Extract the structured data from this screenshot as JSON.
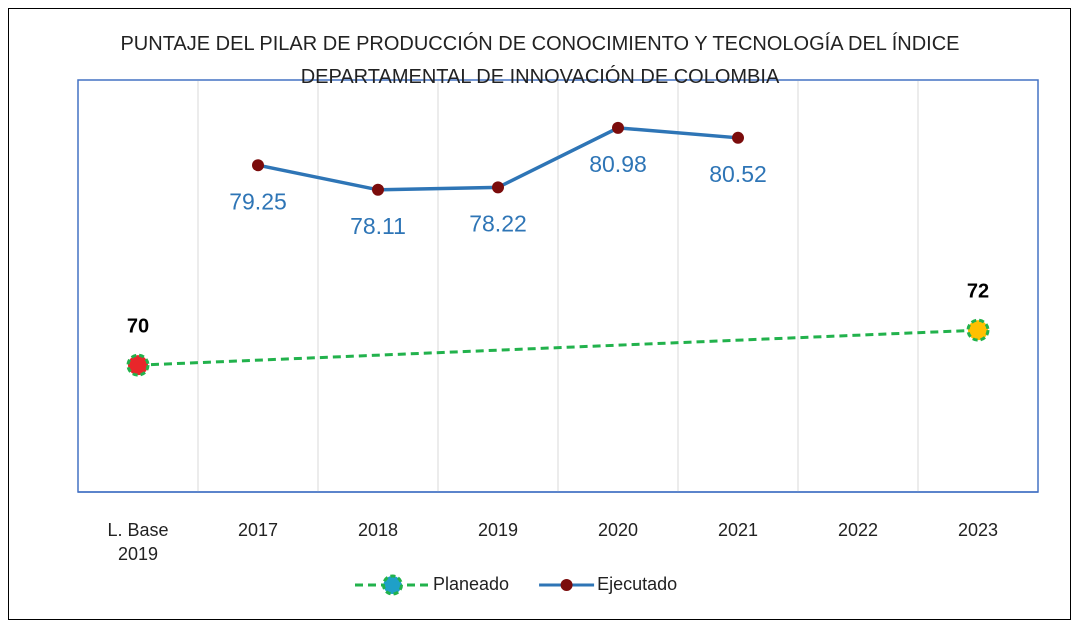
{
  "chart_data": {
    "type": "line",
    "title": "PUNTAJE DEL PILAR DE PRODUCCIÓN DE CONOCIMIENTO Y TECNOLOGÍA DEL ÍNDICE DEPARTAMENTAL DE INNOVACIÓN DE COLOMBIA",
    "categories": [
      "L. Base 2019",
      "2017",
      "2018",
      "2019",
      "2020",
      "2021",
      "2022",
      "2023"
    ],
    "series": [
      {
        "name": "Planeado",
        "color": "#22b24c",
        "dashed": true,
        "span_gaps": true,
        "marker_color": "#1fa0c8",
        "point_colors": [
          "#e8262a",
          null,
          null,
          null,
          null,
          null,
          null,
          "#ffc000"
        ],
        "values": [
          70,
          null,
          null,
          null,
          null,
          null,
          null,
          72
        ]
      },
      {
        "name": "Ejecutado",
        "color": "#2e75b6",
        "marker_color": "#7b0c0c",
        "axis": "y2",
        "values": [
          null,
          79.25,
          78.11,
          78.22,
          80.98,
          80.52,
          null,
          null
        ]
      }
    ],
    "ylim": [
      62.75,
      86.3
    ],
    "y2lim": [
      64.1,
      83.2
    ],
    "legend": "bottom"
  }
}
